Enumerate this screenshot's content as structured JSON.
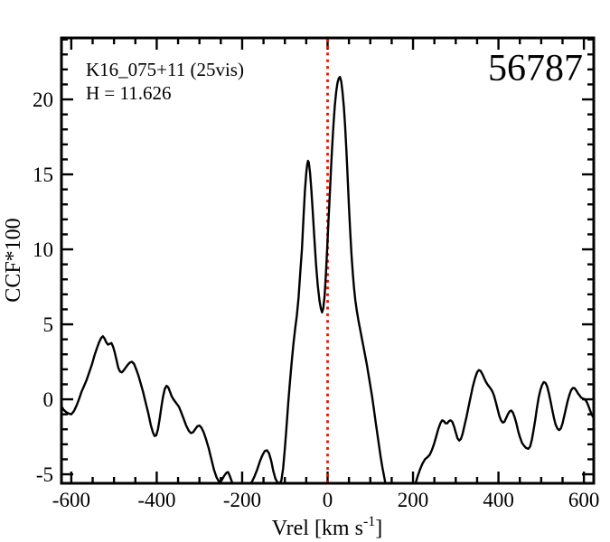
{
  "colors": {
    "background": "#ffffff",
    "axis": "#000000",
    "curve": "#000000",
    "text": "#000000",
    "zero_line": "#ee1100"
  },
  "chart_data": {
    "type": "line",
    "title": "",
    "ylabel": "CCF*100",
    "xlabel": {
      "text": "Vrel [km s",
      "sup": "-1",
      "close": "]"
    },
    "xlim": [
      -623,
      623
    ],
    "ylim": [
      -5.6,
      24.1
    ],
    "grid": false,
    "legend": "none",
    "x_major_ticks": [
      -600,
      -400,
      -200,
      0,
      200,
      400,
      600
    ],
    "x_tick_labels": [
      "-600",
      "-400",
      "-200",
      "0",
      "200",
      "400",
      "600"
    ],
    "x_minor_step": 50,
    "y_major_ticks": [
      -5,
      0,
      5,
      10,
      15,
      20
    ],
    "y_tick_labels": [
      "-5",
      "0",
      "5",
      "10",
      "15",
      "20"
    ],
    "y_minor_step": 1,
    "vline_x": 0,
    "vline_style": "dotted",
    "annotations": {
      "target": "K16_075+11 (25vis)",
      "h_mag": "H = 11.626",
      "field_number": "56787"
    },
    "series": [
      {
        "name": "CCF",
        "x": [
          -624,
          -618,
          -612,
          -606,
          -600,
          -594,
          -588,
          -582,
          -576,
          -570,
          -564,
          -558,
          -552,
          -546,
          -540,
          -535,
          -530,
          -526,
          -522,
          -518,
          -514,
          -510,
          -506,
          -502,
          -498,
          -494,
          -490,
          -486,
          -482,
          -478,
          -473,
          -468,
          -463,
          -458,
          -453,
          -448,
          -443,
          -438,
          -432,
          -426,
          -420,
          -414,
          -409,
          -405,
          -401,
          -397,
          -393,
          -389,
          -385,
          -381,
          -377,
          -373,
          -369,
          -365,
          -361,
          -357,
          -353,
          -348,
          -343,
          -337,
          -331,
          -325,
          -320,
          -315,
          -310,
          -305,
          -300,
          -295,
          -290,
          -284,
          -278,
          -272,
          -266,
          -260,
          -254,
          -248,
          -242,
          -237,
          -233,
          -229,
          -224,
          -218,
          -211,
          -203,
          -195,
          -187,
          -179,
          -172,
          -165,
          -158,
          -152,
          -147,
          -142,
          -137,
          -132,
          -127,
          -122,
          -117,
          -112,
          -108,
          -104,
          -100,
          -96,
          -92,
          -88,
          -84,
          -80,
          -76,
          -72,
          -68,
          -64,
          -60,
          -56,
          -53,
          -50,
          -48,
          -46,
          -44,
          -41,
          -38,
          -35,
          -31,
          -27,
          -23,
          -19,
          -16,
          -13,
          -10,
          -7,
          -4,
          -1,
          2,
          5,
          8,
          11,
          14,
          17,
          20,
          23,
          26,
          29,
          32,
          35,
          38,
          41,
          44,
          47,
          50,
          53,
          56,
          59,
          62,
          65,
          68,
          72,
          76,
          80,
          84,
          88,
          92,
          96,
          100,
          104,
          108,
          112,
          116,
          120,
          124,
          128,
          132,
          136,
          141,
          147,
          154,
          162,
          171,
          180,
          189,
          197,
          204,
          210,
          216,
          222,
          228,
          234,
          239,
          244,
          249,
          254,
          259,
          264,
          268,
          272,
          276,
          280,
          284,
          288,
          292,
          296,
          300,
          304,
          308,
          312,
          316,
          320,
          325,
          330,
          335,
          340,
          345,
          350,
          354,
          358,
          362,
          366,
          370,
          374,
          378,
          382,
          386,
          390,
          394,
          398,
          402,
          406,
          410,
          414,
          418,
          422,
          426,
          430,
          434,
          438,
          442,
          446,
          450,
          455,
          460,
          465,
          470,
          474,
          478,
          482,
          486,
          490,
          494,
          498,
          502,
          506,
          510,
          514,
          518,
          522,
          526,
          530,
          534,
          538,
          542,
          546,
          550,
          554,
          558,
          562,
          566,
          570,
          574,
          578,
          582,
          586,
          590,
          594,
          598,
          602,
          606,
          610,
          614,
          618,
          622
        ],
        "y": [
          -0.4,
          -0.7,
          -0.85,
          -0.95,
          -1.0,
          -0.8,
          -0.45,
          0.0,
          0.5,
          0.9,
          1.3,
          1.8,
          2.3,
          2.9,
          3.4,
          3.8,
          4.1,
          4.2,
          4.05,
          3.8,
          3.65,
          3.7,
          3.75,
          3.5,
          3.1,
          2.6,
          2.1,
          1.85,
          1.8,
          1.9,
          2.1,
          2.3,
          2.45,
          2.5,
          2.35,
          2.0,
          1.6,
          1.1,
          0.5,
          -0.2,
          -0.9,
          -1.7,
          -2.2,
          -2.45,
          -2.4,
          -2.0,
          -1.3,
          -0.5,
          0.2,
          0.7,
          0.9,
          0.8,
          0.5,
          0.2,
          0.0,
          -0.15,
          -0.3,
          -0.5,
          -0.85,
          -1.3,
          -1.75,
          -2.1,
          -2.25,
          -2.2,
          -2.0,
          -1.8,
          -1.75,
          -1.9,
          -2.2,
          -2.7,
          -3.3,
          -4.0,
          -4.7,
          -5.2,
          -5.5,
          -5.4,
          -5.1,
          -4.9,
          -4.85,
          -5.1,
          -5.5,
          -5.9,
          -6.2,
          -6.3,
          -6.2,
          -5.9,
          -5.6,
          -5.2,
          -4.7,
          -4.1,
          -3.7,
          -3.45,
          -3.4,
          -3.6,
          -4.1,
          -4.8,
          -5.3,
          -5.55,
          -5.6,
          -5.4,
          -4.6,
          -3.3,
          -1.8,
          -0.2,
          1.2,
          2.5,
          3.7,
          4.7,
          5.6,
          6.8,
          8.4,
          10.0,
          12.3,
          13.9,
          15.1,
          15.6,
          15.9,
          15.8,
          15.1,
          14.0,
          12.6,
          10.8,
          9.0,
          7.6,
          6.6,
          6.1,
          5.8,
          6.1,
          6.9,
          8.3,
          10.0,
          11.8,
          13.6,
          15.4,
          17.0,
          18.4,
          19.6,
          20.5,
          21.1,
          21.4,
          21.5,
          21.2,
          20.5,
          19.5,
          18.2,
          16.6,
          14.8,
          12.9,
          11.1,
          9.6,
          8.4,
          7.4,
          6.6,
          6.0,
          5.3,
          4.7,
          4.1,
          3.5,
          2.9,
          2.3,
          1.6,
          0.9,
          0.2,
          -0.6,
          -1.4,
          -2.2,
          -3.0,
          -3.8,
          -4.5,
          -5.1,
          -5.7,
          -6.4,
          -7.0,
          -7.5,
          -7.8,
          -7.8,
          -7.5,
          -7.0,
          -6.4,
          -5.8,
          -5.2,
          -4.7,
          -4.3,
          -4.0,
          -3.85,
          -3.7,
          -3.4,
          -3.0,
          -2.5,
          -2.0,
          -1.6,
          -1.4,
          -1.45,
          -1.6,
          -1.6,
          -1.45,
          -1.4,
          -1.5,
          -1.8,
          -2.2,
          -2.6,
          -2.75,
          -2.65,
          -2.3,
          -1.8,
          -1.2,
          -0.5,
          0.2,
          0.85,
          1.4,
          1.8,
          1.95,
          1.9,
          1.7,
          1.45,
          1.2,
          1.0,
          0.85,
          0.7,
          0.5,
          0.2,
          -0.2,
          -0.65,
          -1.1,
          -1.4,
          -1.55,
          -1.5,
          -1.25,
          -1.0,
          -0.8,
          -0.75,
          -0.9,
          -1.2,
          -1.6,
          -2.1,
          -2.5,
          -2.9,
          -3.1,
          -3.25,
          -3.3,
          -3.15,
          -2.7,
          -2.1,
          -1.4,
          -0.6,
          0.1,
          0.6,
          0.95,
          1.15,
          1.1,
          0.85,
          0.4,
          -0.15,
          -0.7,
          -1.25,
          -1.7,
          -1.95,
          -2.05,
          -1.95,
          -1.6,
          -1.1,
          -0.6,
          -0.1,
          0.3,
          0.6,
          0.75,
          0.75,
          0.6,
          0.4,
          0.25,
          0.1,
          0.05,
          0.0,
          -0.15,
          -0.4,
          -0.7,
          -1.0,
          -1.2
        ]
      }
    ]
  }
}
